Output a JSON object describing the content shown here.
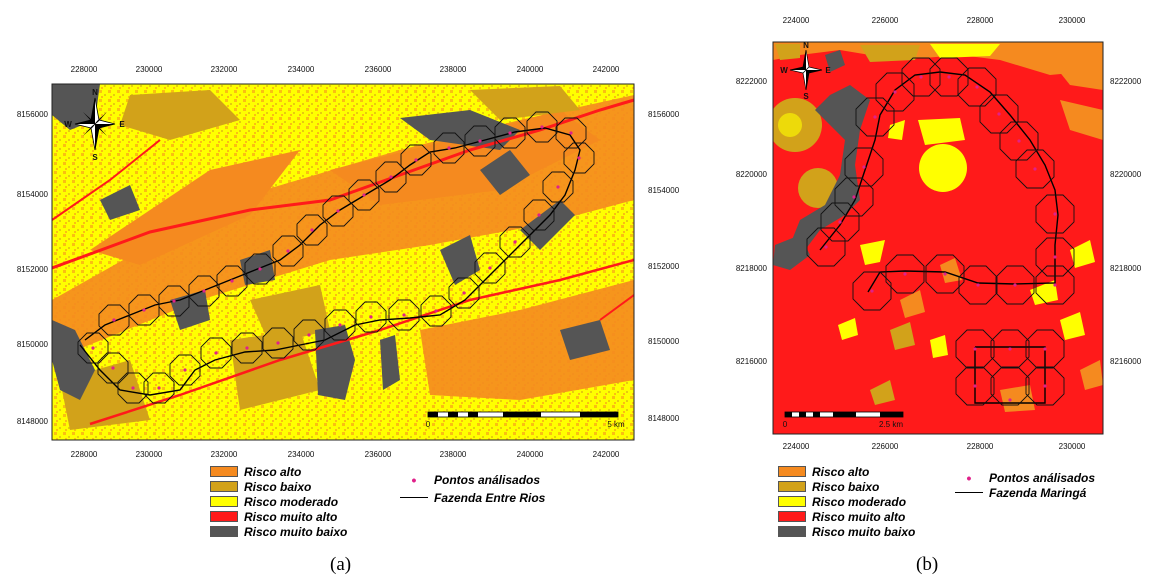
{
  "panels": [
    {
      "id": "a",
      "caption": "(a)",
      "x_ticks": [
        "228000",
        "230000",
        "232000",
        "234000",
        "236000",
        "238000",
        "240000",
        "242000"
      ],
      "y_ticks": [
        "8156000",
        "8154000",
        "8152000",
        "8150000",
        "8148000"
      ],
      "scale_bar": {
        "start_label": "0",
        "end_label": "5 km"
      },
      "north_arrow": {
        "n": "N",
        "s": "S",
        "e": "E",
        "w": "W"
      },
      "legend_classes": [
        {
          "label": "Risco alto",
          "color": "#f58a1f"
        },
        {
          "label": "Risco baixo",
          "color": "#d2a21a"
        },
        {
          "label": "Risco moderado",
          "color": "#ffff00"
        },
        {
          "label": "Risco muito alto",
          "color": "#ff1a1a"
        },
        {
          "label": "Risco muito baixo",
          "color": "#555555"
        }
      ],
      "legend_points": "Pontos análisados",
      "legend_line": "Fazenda Entre Rios"
    },
    {
      "id": "b",
      "caption": "(b)",
      "x_ticks": [
        "224000",
        "226000",
        "228000",
        "230000"
      ],
      "y_ticks": [
        "8222000",
        "8220000",
        "8218000",
        "8216000"
      ],
      "scale_bar": {
        "start_label": "0",
        "end_label": "2.5 km"
      },
      "north_arrow": {
        "n": "N",
        "s": "S",
        "e": "E",
        "w": "W"
      },
      "legend_classes": [
        {
          "label": "Risco alto",
          "color": "#f58a1f"
        },
        {
          "label": "Risco baixo",
          "color": "#d2a21a"
        },
        {
          "label": "Risco moderado",
          "color": "#ffff00"
        },
        {
          "label": "Risco muito alto",
          "color": "#ff1a1a"
        },
        {
          "label": "Risco muito baixo",
          "color": "#555555"
        }
      ],
      "legend_points": "Pontos análisados",
      "legend_line": "Fazenda Maringá"
    }
  ],
  "colors": {
    "alto": "#f58a1f",
    "baixo": "#d2a21a",
    "moderado": "#ffff00",
    "muito_alto": "#ff1a1a",
    "muito_baixo": "#555555",
    "points": "#e0218a"
  }
}
